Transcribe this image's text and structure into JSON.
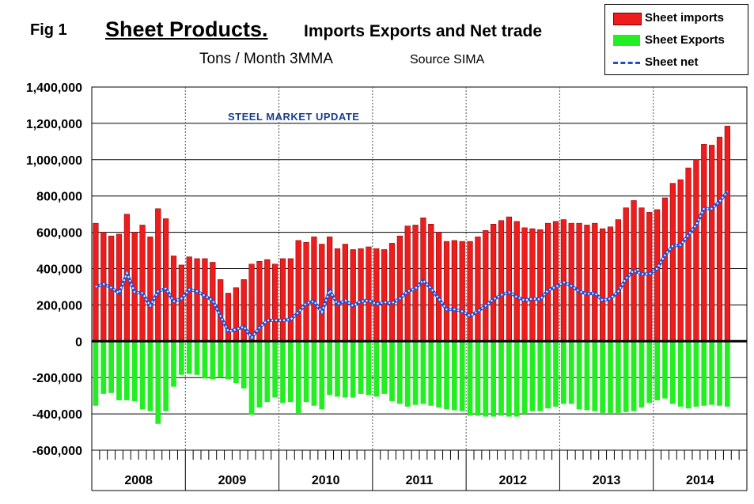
{
  "figure": {
    "fig_label": "Fig 1",
    "title_main": "Sheet Products.",
    "title_rest": "Imports Exports and Net trade",
    "subtitle": "Tons / Month 3MMA",
    "source": "Source SIMA",
    "watermark": "STEEL MARKET UPDATE"
  },
  "legend": {
    "imports": "Sheet imports",
    "exports": "Sheet Exports",
    "net": "Sheet net"
  },
  "colors": {
    "imports": "#ee1c1c",
    "exports": "#22ee22",
    "net": "#1f4fd6",
    "zero_line": "#000000"
  },
  "chart_data": {
    "type": "bar",
    "title": "Sheet Products. Imports Exports and Net trade",
    "subtitle": "Tons / Month 3MMA",
    "years": [
      "2008",
      "2009",
      "2010",
      "2011",
      "2012",
      "2013",
      "2014"
    ],
    "months_per_year": 12,
    "ylim": [
      -600000,
      1400000
    ],
    "yticks": [
      1400000,
      1200000,
      1000000,
      800000,
      600000,
      400000,
      200000,
      0,
      -200000,
      -400000,
      -600000
    ],
    "ytick_labels": [
      "1,400,000",
      "1,200,000",
      "1,000,000",
      "800,000",
      "600,000",
      "400,000",
      "200,000",
      "0",
      "-200,000",
      "-400,000",
      "-600,000"
    ],
    "grid": true,
    "legend_position": "top-right",
    "series": [
      {
        "name": "Sheet imports",
        "type": "bar",
        "values": [
          650000,
          600000,
          580000,
          590000,
          700000,
          600000,
          640000,
          575000,
          730000,
          675000,
          470000,
          420000,
          465000,
          455000,
          455000,
          435000,
          340000,
          265000,
          295000,
          340000,
          425000,
          440000,
          450000,
          425000,
          455000,
          455000,
          555000,
          545000,
          575000,
          535000,
          575000,
          510000,
          535000,
          505000,
          510000,
          520000,
          510000,
          505000,
          540000,
          580000,
          635000,
          640000,
          680000,
          645000,
          600000,
          550000,
          555000,
          550000,
          550000,
          575000,
          610000,
          645000,
          665000,
          685000,
          660000,
          625000,
          620000,
          615000,
          650000,
          660000,
          670000,
          650000,
          650000,
          640000,
          650000,
          620000,
          630000,
          670000,
          735000,
          775000,
          735000,
          710000,
          725000,
          790000,
          870000,
          890000,
          955000,
          1000000,
          1085000,
          1080000,
          1125000,
          1185000
        ]
      },
      {
        "name": "Sheet Exports",
        "type": "bar",
        "values": [
          -355000,
          -290000,
          -285000,
          -325000,
          -325000,
          -330000,
          -375000,
          -385000,
          -455000,
          -385000,
          -250000,
          -185000,
          -180000,
          -185000,
          -205000,
          -210000,
          -200000,
          -210000,
          -230000,
          -260000,
          -405000,
          -365000,
          -335000,
          -310000,
          -340000,
          -335000,
          -395000,
          -335000,
          -355000,
          -375000,
          -295000,
          -305000,
          -310000,
          -310000,
          -290000,
          -295000,
          -305000,
          -290000,
          -330000,
          -345000,
          -360000,
          -350000,
          -345000,
          -355000,
          -365000,
          -375000,
          -380000,
          -385000,
          -410000,
          -410000,
          -415000,
          -415000,
          -410000,
          -415000,
          -415000,
          -400000,
          -385000,
          -385000,
          -370000,
          -360000,
          -345000,
          -345000,
          -375000,
          -380000,
          -385000,
          -395000,
          -395000,
          -395000,
          -390000,
          -385000,
          -365000,
          -340000,
          -325000,
          -315000,
          -345000,
          -360000,
          -370000,
          -360000,
          -355000,
          -350000,
          -355000,
          -360000
        ]
      },
      {
        "name": "Sheet net",
        "type": "line",
        "values": [
          300000,
          315000,
          295000,
          265000,
          375000,
          270000,
          265000,
          195000,
          275000,
          290000,
          220000,
          235000,
          285000,
          275000,
          250000,
          225000,
          140000,
          55000,
          65000,
          80000,
          20000,
          75000,
          115000,
          115000,
          115000,
          120000,
          160000,
          210000,
          220000,
          160000,
          280000,
          205000,
          225000,
          195000,
          220000,
          225000,
          205000,
          215000,
          210000,
          235000,
          275000,
          290000,
          335000,
          290000,
          235000,
          175000,
          175000,
          165000,
          140000,
          165000,
          195000,
          230000,
          255000,
          270000,
          245000,
          225000,
          235000,
          230000,
          280000,
          300000,
          325000,
          305000,
          275000,
          260000,
          265000,
          225000,
          235000,
          275000,
          345000,
          390000,
          370000,
          370000,
          400000,
          475000,
          525000,
          530000,
          585000,
          640000,
          730000,
          730000,
          770000,
          825000
        ]
      }
    ]
  }
}
